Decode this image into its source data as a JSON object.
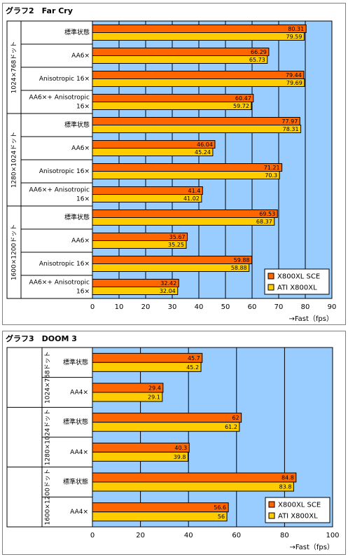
{
  "chart_data": [
    {
      "type": "bar",
      "orientation": "horizontal",
      "title": "グラフ2　Far Cry",
      "xlabel": "→Fast（fps）",
      "xlim": [
        0,
        90
      ],
      "xticks": [
        "0",
        "10",
        "20",
        "30",
        "40",
        "50",
        "60",
        "70",
        "80",
        "90"
      ],
      "grid": true,
      "legend_position": "bottom-right",
      "colors": {
        "X800XL SCE": "#ff6600",
        "ATI X800XL": "#ffcc00",
        "plot_background": "#99ccff"
      },
      "groups": [
        {
          "label": "1024×768ドット",
          "categories": [
            [
              "標準状態"
            ],
            [
              "AA6×"
            ],
            [
              "Anisotropic 16×"
            ],
            [
              "AA6×+ Anisotropic",
              "16×"
            ]
          ]
        },
        {
          "label": "1280×1024ドット",
          "categories": [
            [
              "標準状態"
            ],
            [
              "AA6×"
            ],
            [
              "Anisotropic 16×"
            ],
            [
              "AA6×+ Anisotropic",
              "16×"
            ]
          ]
        },
        {
          "label": "1600×1200ドット",
          "categories": [
            [
              "標準状態"
            ],
            [
              "AA6×"
            ],
            [
              "Anisotropic 16×"
            ],
            [
              "AA6×+ Anisotropic",
              "16×"
            ]
          ]
        }
      ],
      "series": [
        {
          "name": "X800XL SCE",
          "values": [
            80.31,
            66.29,
            79.44,
            60.47,
            77.97,
            46.04,
            71.21,
            41.4,
            69.53,
            35.67,
            59.88,
            32.42
          ]
        },
        {
          "name": "ATI X800XL",
          "values": [
            79.59,
            65.73,
            79.69,
            59.72,
            78.31,
            45.24,
            70.3,
            41.02,
            68.37,
            35.25,
            58.88,
            32.04
          ]
        }
      ]
    },
    {
      "type": "bar",
      "orientation": "horizontal",
      "title": "グラフ3　DOOM 3",
      "xlabel": "→Fast（fps）",
      "xlim": [
        0,
        100
      ],
      "xticks": [
        "0",
        "20",
        "40",
        "60",
        "80",
        "100"
      ],
      "grid": true,
      "legend_position": "bottom-right",
      "colors": {
        "X800XL SCE": "#ff6600",
        "ATI X800XL": "#ffcc00",
        "plot_background": "#99ccff"
      },
      "groups": [
        {
          "label": "1024×768ドット",
          "categories": [
            [
              "標準状態"
            ],
            [
              "AA4×"
            ]
          ]
        },
        {
          "label": "1280×1024ドット",
          "categories": [
            [
              "標準状態"
            ],
            [
              "AA4×"
            ]
          ]
        },
        {
          "label": "1600×1200ドット",
          "categories": [
            [
              "標準状態"
            ],
            [
              "AA4×"
            ]
          ]
        }
      ],
      "series": [
        {
          "name": "X800XL SCE",
          "values": [
            45.7,
            29.4,
            62,
            40.3,
            84.8,
            56.6
          ]
        },
        {
          "name": "ATI X800XL",
          "values": [
            45.2,
            29.1,
            61.2,
            39.8,
            83.8,
            56
          ]
        }
      ]
    }
  ]
}
